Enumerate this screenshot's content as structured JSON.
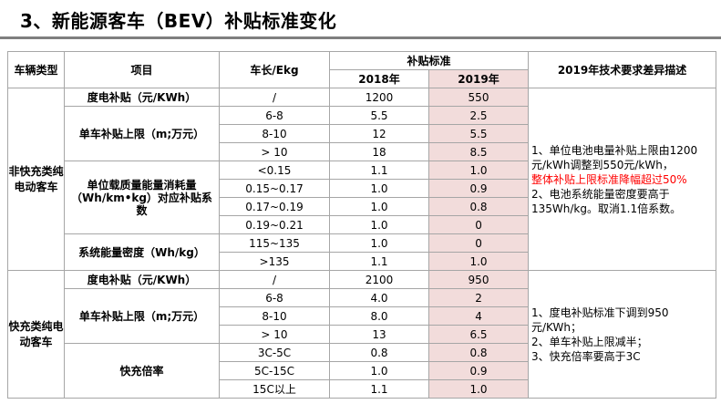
{
  "title": "3、新能源客车（BEV）补贴标准变化",
  "headers": {
    "vehicle_type": "车辆类型",
    "item": "项目",
    "length": "车长/Ekg",
    "subsidy_std": "补贴标准",
    "year2018": "2018年",
    "year2019": "2019年",
    "diff_desc": "2019年技术要求差异描述"
  },
  "groups": {
    "non_fast": {
      "category": "非快充类纯电动客车",
      "labels": {
        "degree": "度电补贴（元/KWh）",
        "cap": "单车补贴上限（m;万元）",
        "coef": "单位载质量能量消耗量（Wh/km•kg）对应补贴系数",
        "density": "系统能量密度（Wh/kg）"
      },
      "rows": [
        {
          "len": "/",
          "y2018": "1200",
          "y2019": "550"
        },
        {
          "len": "6-8",
          "y2018": "5.5",
          "y2019": "2.5"
        },
        {
          "len": "8-10",
          "y2018": "12",
          "y2019": "5.5"
        },
        {
          "len": "> 10",
          "y2018": "18",
          "y2019": "8.5"
        },
        {
          "len": "<0.15",
          "y2018": "1.1",
          "y2019": "1.0"
        },
        {
          "len": "0.15~0.17",
          "y2018": "1.0",
          "y2019": "0.9"
        },
        {
          "len": "0.17~0.19",
          "y2018": "1.0",
          "y2019": "0.8"
        },
        {
          "len": "0.19~0.21",
          "y2018": "1.0",
          "y2019": "0"
        },
        {
          "len": "115~135",
          "y2018": "1.0",
          "y2019": "0"
        },
        {
          "len": ">135",
          "y2018": "1.1",
          "y2019": "1.0"
        }
      ],
      "desc": {
        "line1": "1、单位电池电量补贴上限由1200元/kWh调整到550元/kWh，",
        "line2_red": "整体补贴上限标准降幅超过50%",
        "line3": "2、电池系统能量密度要高于135Wh/kg。取消1.1倍系数。"
      }
    },
    "fast": {
      "category": "快充类纯电动客车",
      "labels": {
        "degree": "度电补贴（元/KWh）",
        "cap": "单车补贴上限（m;万元）",
        "rate": "快充倍率"
      },
      "rows": [
        {
          "len": "/",
          "y2018": "2100",
          "y2019": "950"
        },
        {
          "len": "6-8",
          "y2018": "4.0",
          "y2019": "2"
        },
        {
          "len": "8-10",
          "y2018": "8.0",
          "y2019": "4"
        },
        {
          "len": "> 10",
          "y2018": "13",
          "y2019": "6.5"
        },
        {
          "len": "3C-5C",
          "y2018": "0.8",
          "y2019": "0.8"
        },
        {
          "len": "5C-15C",
          "y2018": "1.0",
          "y2019": "0.9"
        },
        {
          "len": "15C以上",
          "y2018": "1.1",
          "y2019": "1.0"
        }
      ],
      "desc": {
        "line1": "1、度电补贴标准下调到950元/KWh；",
        "line2": "2、单车补贴上限减半；",
        "line3": "3、快充倍率要高于3C"
      }
    }
  }
}
